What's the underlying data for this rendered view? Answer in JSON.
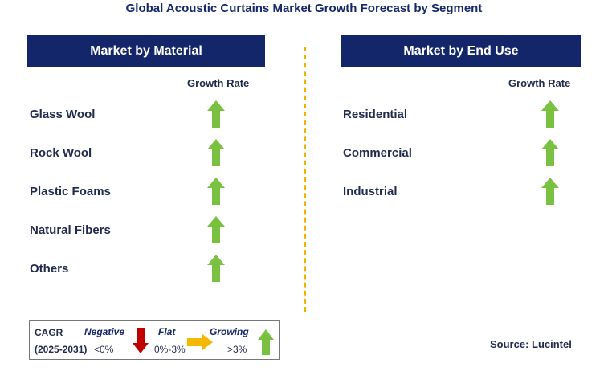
{
  "title": "Global Acoustic Curtains Market Growth Forecast by Segment",
  "left_panel": {
    "header": "Market by Material",
    "column_label": "Growth Rate",
    "rows": [
      {
        "label": "Glass Wool",
        "trend": "growing"
      },
      {
        "label": "Rock Wool",
        "trend": "growing"
      },
      {
        "label": "Plastic Foams",
        "trend": "growing"
      },
      {
        "label": "Natural Fibers",
        "trend": "growing"
      },
      {
        "label": "Others",
        "trend": "growing"
      }
    ]
  },
  "right_panel": {
    "header": "Market by End Use",
    "column_label": "Growth Rate",
    "rows": [
      {
        "label": "Residential",
        "trend": "growing"
      },
      {
        "label": "Commercial",
        "trend": "growing"
      },
      {
        "label": "Industrial",
        "trend": "growing"
      }
    ]
  },
  "legend": {
    "cagr_label": "CAGR",
    "period": "(2025-2031)",
    "negative": {
      "label": "Negative",
      "range": "<0%",
      "icon": "down-arrow-icon",
      "color": "#c00000"
    },
    "flat": {
      "label": "Flat",
      "range": "0%-3%",
      "icon": "right-arrow-icon",
      "color": "#f5b800"
    },
    "growing": {
      "label": "Growing",
      "range": ">3%",
      "icon": "up-arrow-icon",
      "color": "#7ac142"
    }
  },
  "source": "Source: Lucintel",
  "colors": {
    "header_bg": "#14266a",
    "divider": "#f2b200",
    "growing_arrow": "#7ac142"
  }
}
